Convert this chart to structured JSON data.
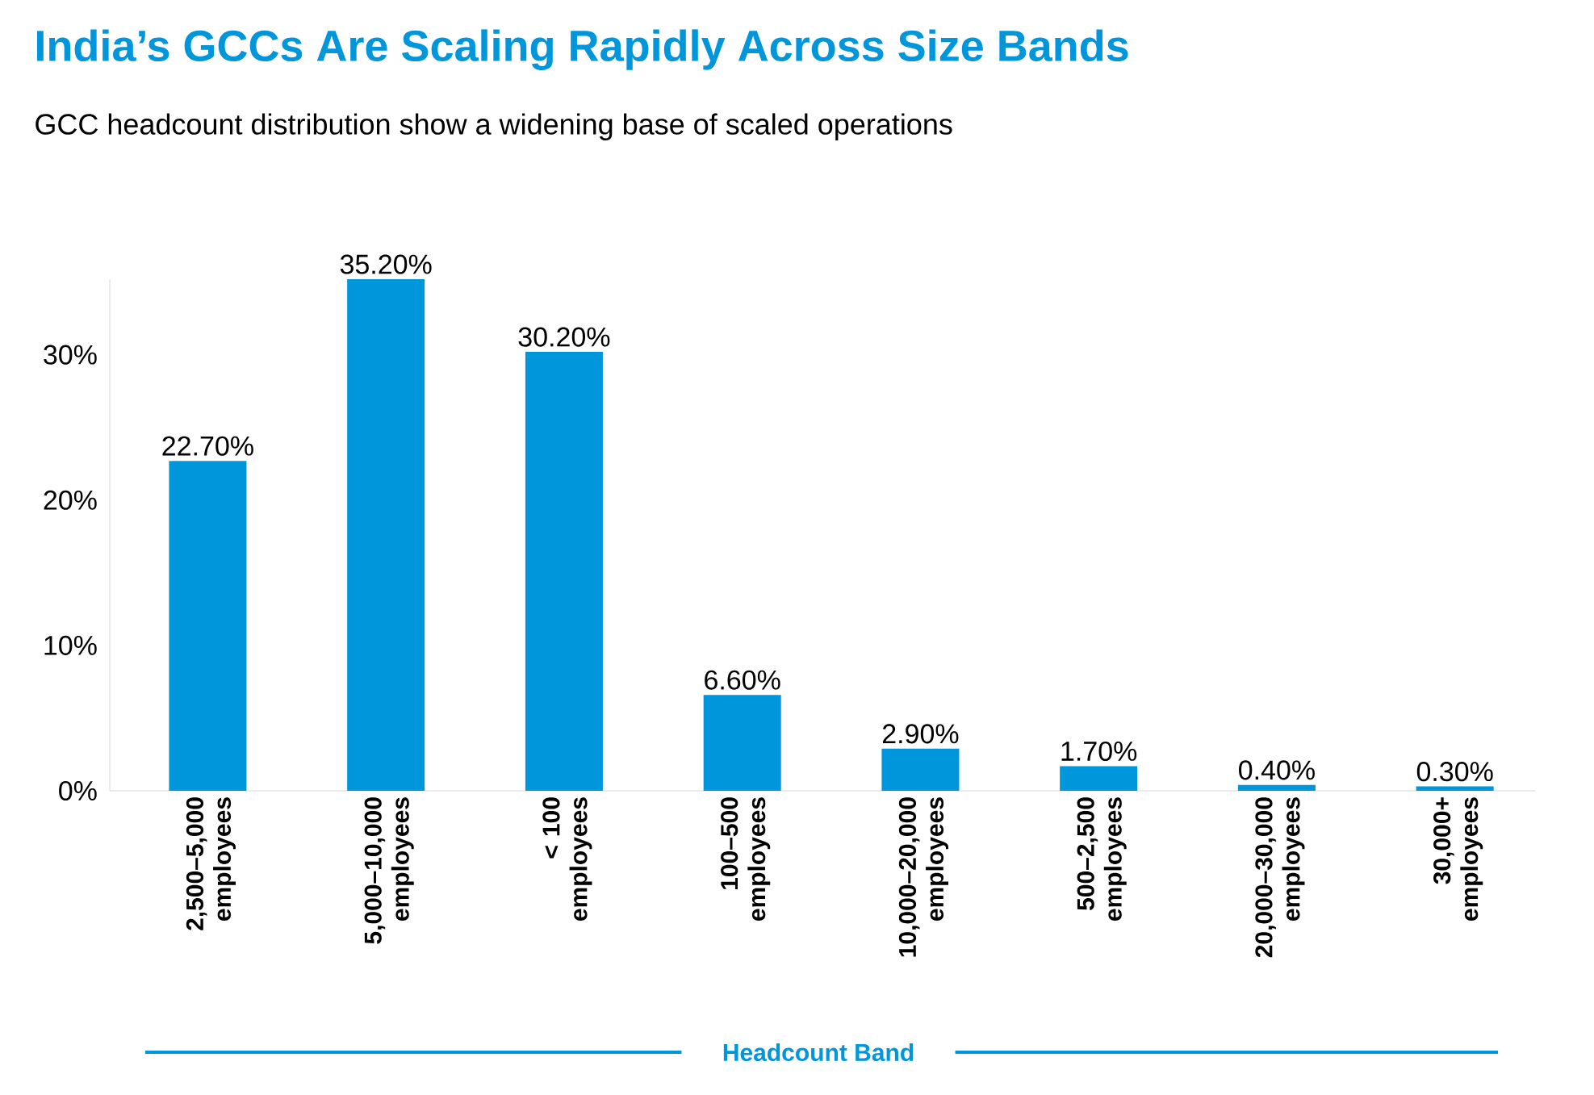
{
  "chart_data": {
    "type": "bar",
    "title": "India’s GCCs Are Scaling Rapidly Across Size Bands",
    "subtitle": "GCC headcount distribution show a widening base of scaled operations",
    "xlabel": "Headcount Band",
    "categories": [
      "2,500–5,000 employees",
      "5,000–10,000 employees",
      "< 100 employees",
      "100–500 employees",
      "10,000–20,000 employees",
      "500–2,500 employees",
      "20,000–30,000 employees",
      "30,000+ employees"
    ],
    "values": [
      22.7,
      35.2,
      30.2,
      6.6,
      2.9,
      1.7,
      0.4,
      0.3
    ],
    "value_labels": [
      "22.70%",
      "35.20%",
      "30.20%",
      "6.60%",
      "2.90%",
      "1.70%",
      "0.40%",
      "0.30%"
    ],
    "color": "#0096db",
    "ylim": [
      0,
      35.2
    ],
    "yticks": [
      {
        "value": 0,
        "label": "0%"
      },
      {
        "value": 10,
        "label": "10%"
      },
      {
        "value": 20,
        "label": "20%"
      },
      {
        "value": 30,
        "label": "30%"
      }
    ],
    "grid": false
  }
}
